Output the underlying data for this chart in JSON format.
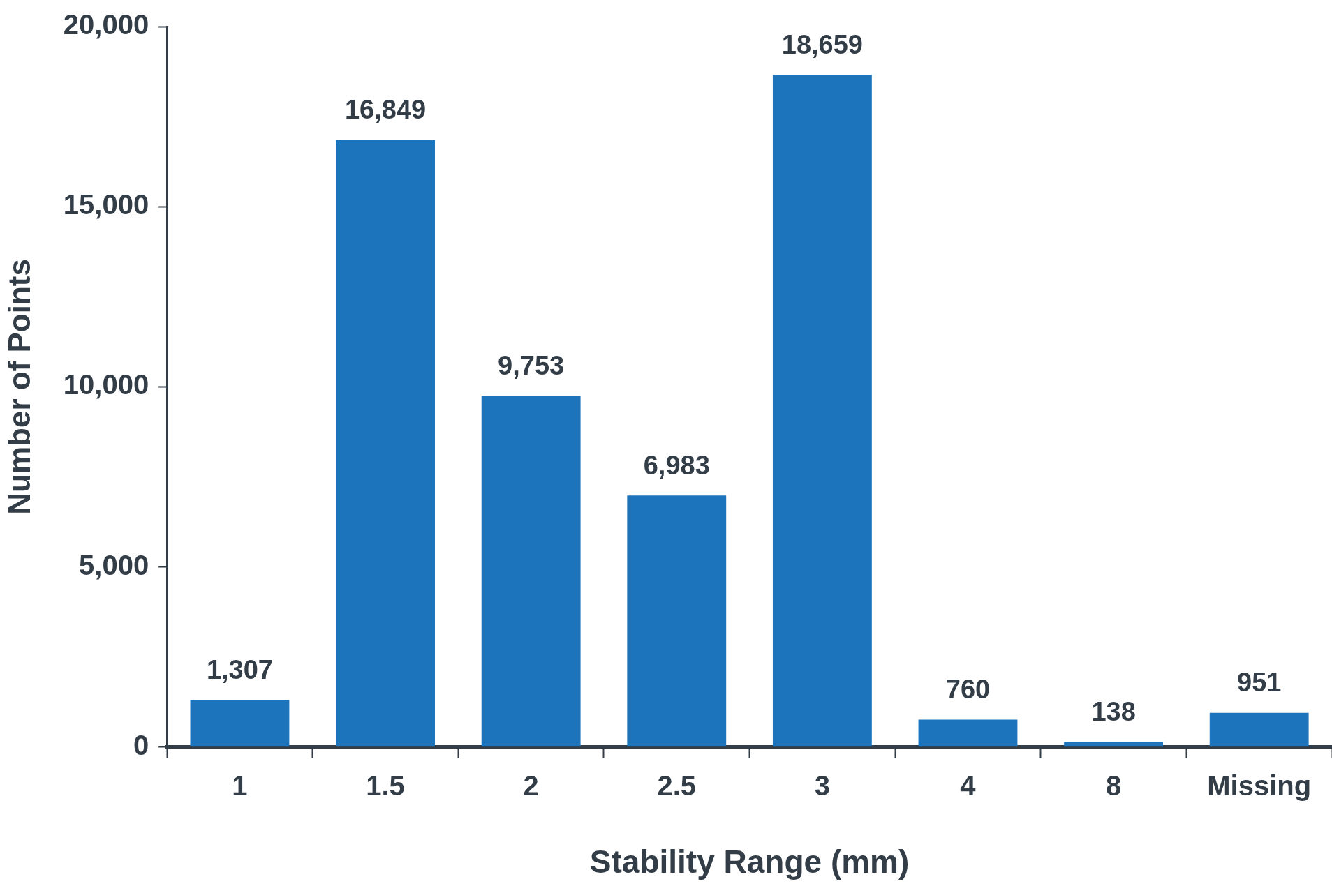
{
  "chart_data": {
    "type": "bar",
    "xlabel": "Stability Range (mm)",
    "ylabel": "Number of Points",
    "categories": [
      "1",
      "1.5",
      "2",
      "2.5",
      "3",
      "4",
      "8",
      "Missing"
    ],
    "values": [
      1307,
      16849,
      9753,
      6983,
      18659,
      760,
      138,
      951
    ],
    "value_labels": [
      "1,307",
      "16,849",
      "9,753",
      "6,983",
      "18,659",
      "760",
      "138",
      "951"
    ],
    "color": "#1c75bc",
    "ylim": [
      0,
      20000
    ],
    "yticks": [
      0,
      {
        "value": 5000,
        "label": "5,000"
      },
      {
        "value": 10000,
        "label": "10,000"
      },
      {
        "value": 15000,
        "label": "15,000"
      },
      {
        "value": 20000,
        "label": "20,000"
      }
    ],
    "grid": false,
    "legend": false
  }
}
